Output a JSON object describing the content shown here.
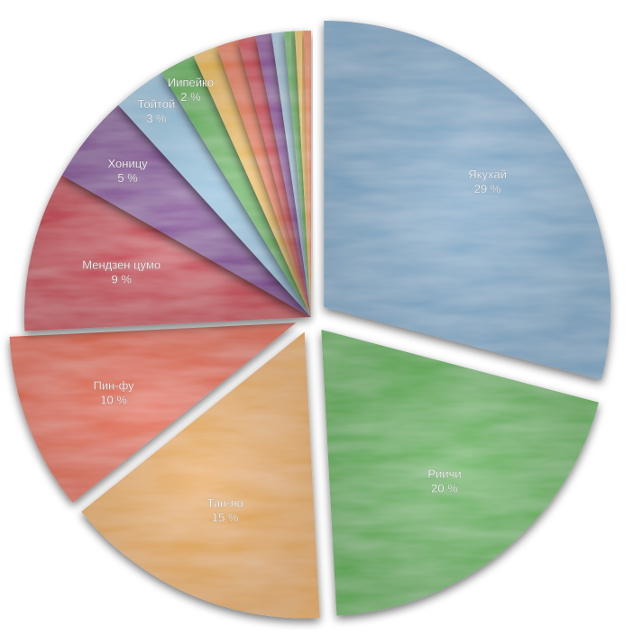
{
  "chart_data": {
    "type": "pie",
    "title": "",
    "slices": [
      {
        "label": "Якухай",
        "value": 29,
        "value_label": "29 %",
        "color": "#7ea9c9",
        "exploded": true,
        "labeled": true
      },
      {
        "label": "Риичи",
        "value": 20,
        "value_label": "20 %",
        "color": "#5bb04f",
        "exploded": true,
        "labeled": true
      },
      {
        "label": "Тан-яо",
        "value": 15,
        "value_label": "15 %",
        "color": "#e8aa58",
        "exploded": true,
        "labeled": true
      },
      {
        "label": "Пин-фу",
        "value": 10,
        "value_label": "10 %",
        "color": "#e2613f",
        "exploded": true,
        "labeled": true
      },
      {
        "label": "Мендзен цумо",
        "value": 9,
        "value_label": "9 %",
        "color": "#c42a3e",
        "exploded": false,
        "labeled": true
      },
      {
        "label": "Хоницу",
        "value": 5,
        "value_label": "5 %",
        "color": "#7d3a92",
        "exploded": false,
        "labeled": true
      },
      {
        "label": "Тойтой",
        "value": 3,
        "value_label": "3 %",
        "color": "#98c3dd",
        "exploded": false,
        "labeled": true
      },
      {
        "label": "Иипейко",
        "value": 2,
        "value_label": "2 %",
        "color": "#63b558",
        "exploded": false,
        "labeled": true
      },
      {
        "label": "",
        "value": 1.4,
        "value_label": "",
        "color": "#efbd55",
        "exploded": false,
        "labeled": false
      },
      {
        "label": "",
        "value": 1.2,
        "value_label": "",
        "color": "#e9774c",
        "exploded": false,
        "labeled": false
      },
      {
        "label": "",
        "value": 1.0,
        "value_label": "",
        "color": "#d2394a",
        "exploded": false,
        "labeled": false
      },
      {
        "label": "",
        "value": 0.9,
        "value_label": "",
        "color": "#8e4a9e",
        "exploded": false,
        "labeled": false
      },
      {
        "label": "",
        "value": 0.7,
        "value_label": "",
        "color": "#a6c8dc",
        "exploded": false,
        "labeled": false
      },
      {
        "label": "",
        "value": 0.6,
        "value_label": "",
        "color": "#6fba60",
        "exploded": false,
        "labeled": false
      },
      {
        "label": "",
        "value": 0.5,
        "value_label": "",
        "color": "#f0c05e",
        "exploded": false,
        "labeled": false
      },
      {
        "label": "",
        "value": 0.4,
        "value_label": "",
        "color": "#ec8758",
        "exploded": false,
        "labeled": false
      }
    ],
    "legend": "none"
  }
}
